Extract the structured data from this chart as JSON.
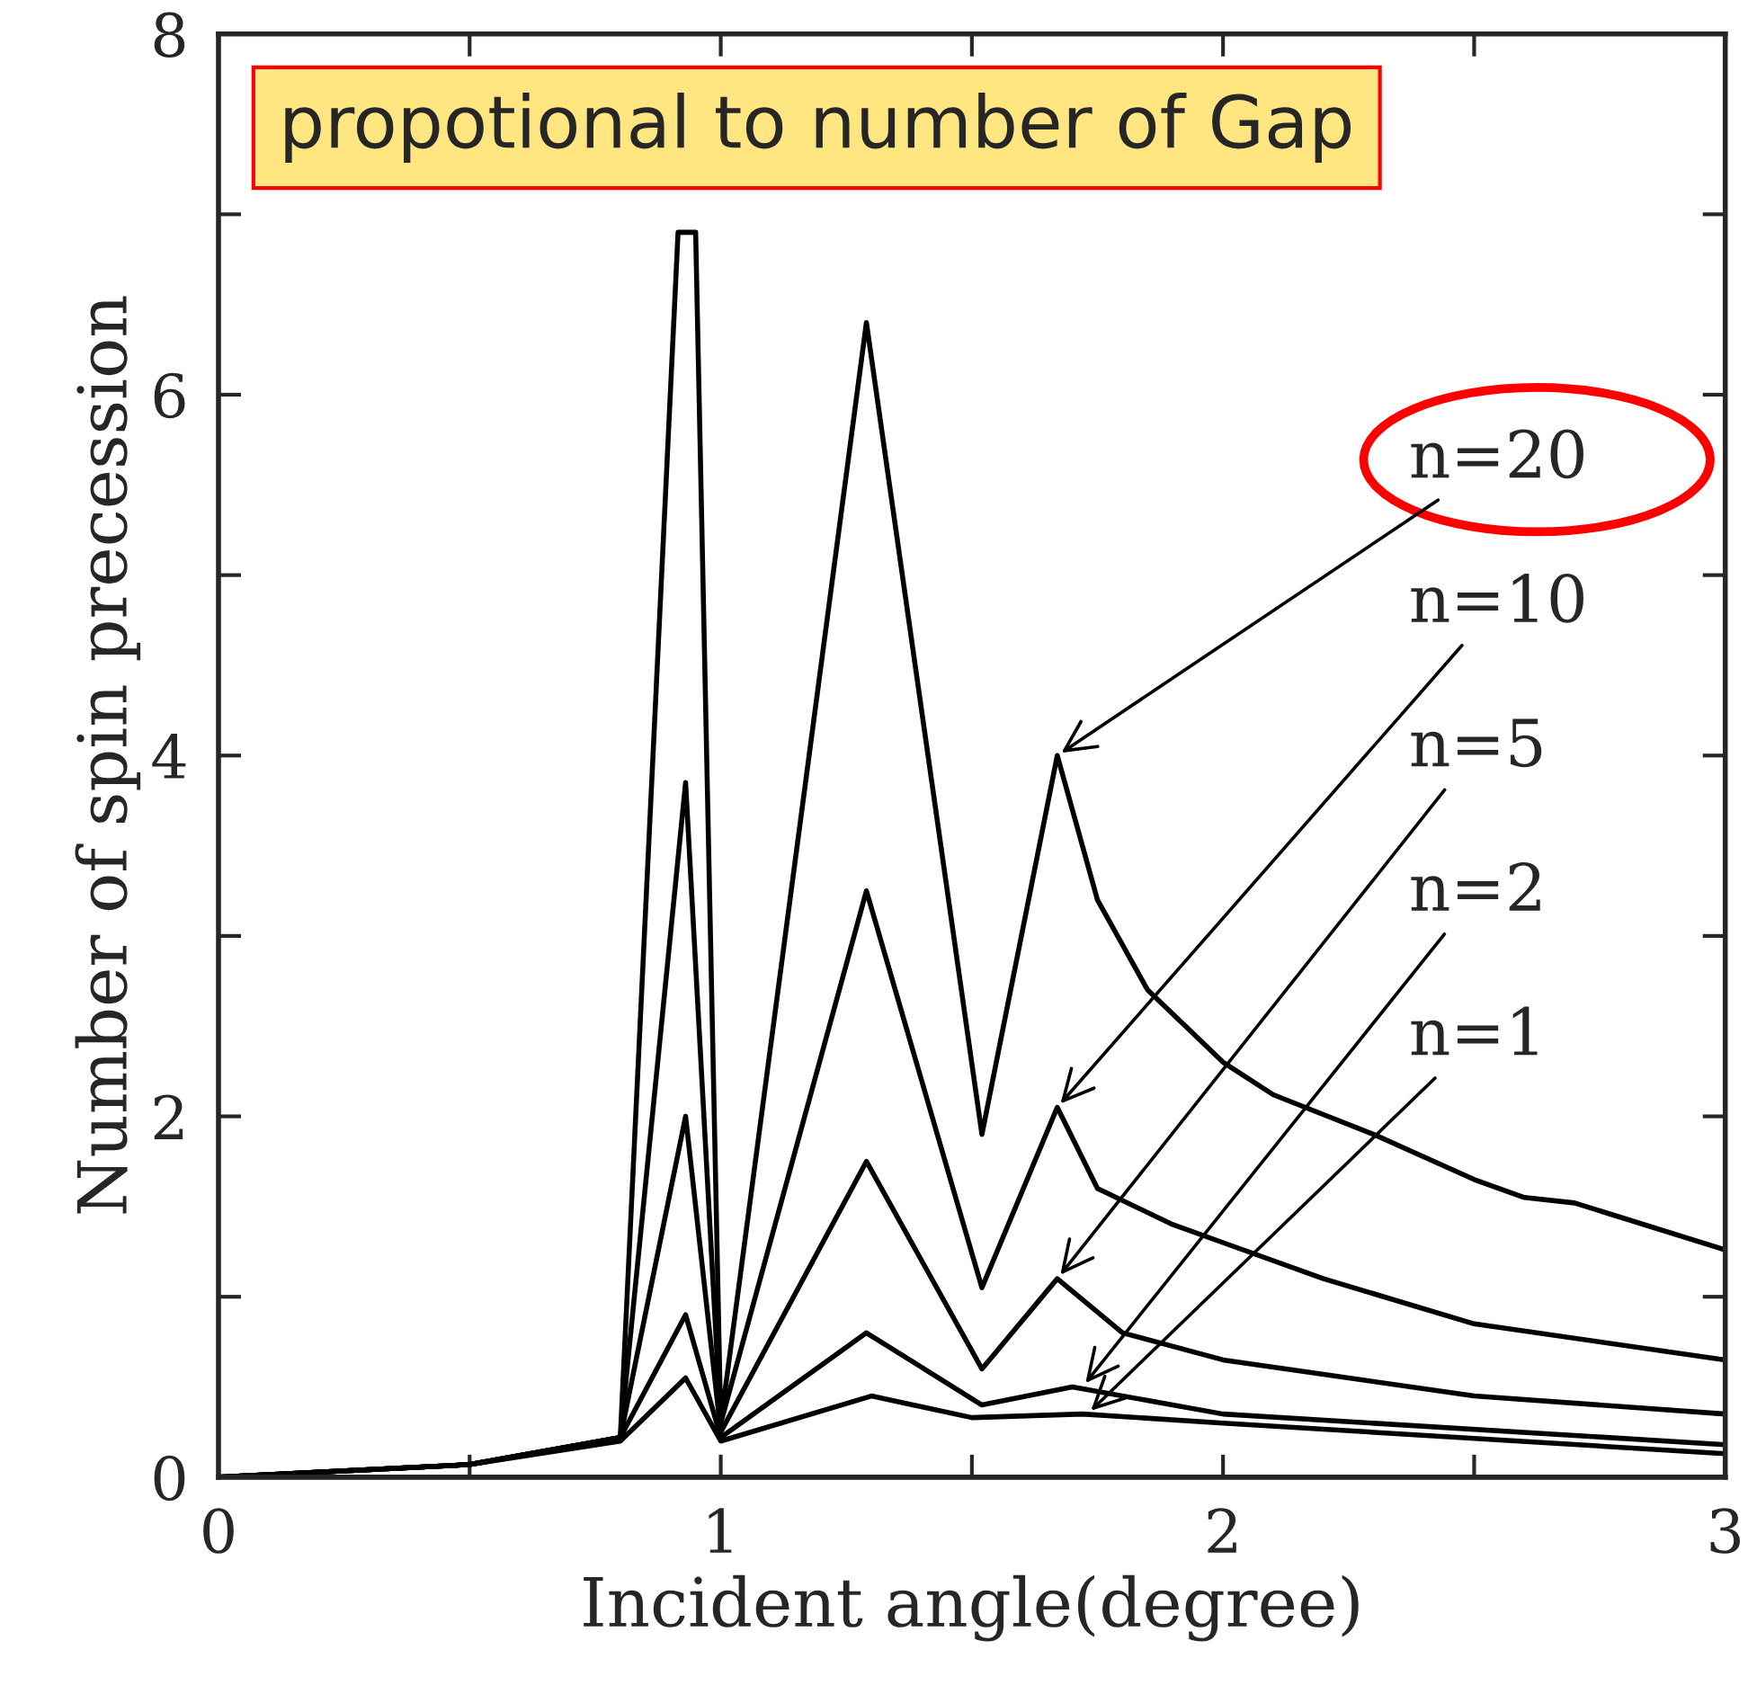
{
  "chart_data": {
    "type": "line",
    "xlabel": "Incident angle(degree)",
    "ylabel": "Number of spin precession",
    "xlim": [
      0,
      3
    ],
    "ylim": [
      0,
      8
    ],
    "xticks": [
      0,
      {
        "value": 0.5,
        "label": null
      },
      1,
      {
        "value": 1.5,
        "label": null
      },
      2,
      {
        "value": 2.5,
        "label": null
      },
      3
    ],
    "yticks": [
      0,
      {
        "value": 1,
        "label": null
      },
      2,
      {
        "value": 3,
        "label": null
      },
      4,
      {
        "value": 5,
        "label": null
      },
      6,
      {
        "value": 7,
        "label": null
      },
      8
    ],
    "grid": false,
    "legend": false,
    "marker": "none",
    "line_style": "solid",
    "series": [
      {
        "color": "#000000",
        "x": [
          0,
          0.5,
          0.8,
          0.915,
          0.95,
          1.0,
          1.29,
          1.52,
          1.67,
          1.75,
          1.85,
          2.0,
          2.1,
          2.3,
          2.5,
          2.6,
          2.7,
          3.0
        ],
        "values": [
          0,
          0.07,
          0.22,
          6.9,
          6.9,
          0.3,
          6.4,
          1.9,
          4.0,
          3.2,
          2.7,
          2.3,
          2.12,
          1.9,
          1.65,
          1.55,
          1.52,
          1.26
        ]
      },
      {
        "color": "#000000",
        "x": [
          0,
          0.5,
          0.8,
          0.93,
          1.0,
          1.29,
          1.52,
          1.67,
          1.75,
          1.9,
          2.0,
          2.2,
          2.5,
          3.0
        ],
        "values": [
          0,
          0.07,
          0.22,
          3.85,
          0.3,
          3.25,
          1.05,
          2.05,
          1.6,
          1.4,
          1.3,
          1.1,
          0.85,
          0.65
        ]
      },
      {
        "color": "#000000",
        "x": [
          0,
          0.5,
          0.8,
          0.93,
          1.0,
          1.29,
          1.52,
          1.67,
          1.8,
          2.0,
          2.5,
          3.0
        ],
        "values": [
          0,
          0.07,
          0.22,
          2.0,
          0.25,
          1.75,
          0.6,
          1.1,
          0.8,
          0.65,
          0.45,
          0.35
        ]
      },
      {
        "color": "#000000",
        "x": [
          0,
          0.5,
          0.8,
          0.93,
          1.0,
          1.29,
          1.52,
          1.7,
          2.0,
          3.0
        ],
        "values": [
          0,
          0.07,
          0.22,
          0.9,
          0.22,
          0.8,
          0.4,
          0.5,
          0.35,
          0.18
        ]
      },
      {
        "color": "#000000",
        "x": [
          0,
          0.5,
          0.8,
          0.93,
          1.0,
          1.3,
          1.5,
          1.72,
          2.0,
          3.0
        ],
        "values": [
          0,
          0.07,
          0.2,
          0.55,
          0.2,
          0.45,
          0.33,
          0.35,
          0.3,
          0.13
        ]
      }
    ],
    "annotations": [
      "propotional to number of Gap",
      {
        "text": "n=20",
        "x": 1.67,
        "y": 4.0
      },
      {
        "text": "n=10",
        "x": 1.67,
        "y": 2.05
      },
      {
        "text": "n=5",
        "x": 1.67,
        "y": 1.1
      },
      {
        "text": "n=2",
        "x": 1.72,
        "y": 0.5
      },
      {
        "text": "n=1",
        "x": 1.73,
        "y": 0.35
      }
    ]
  }
}
